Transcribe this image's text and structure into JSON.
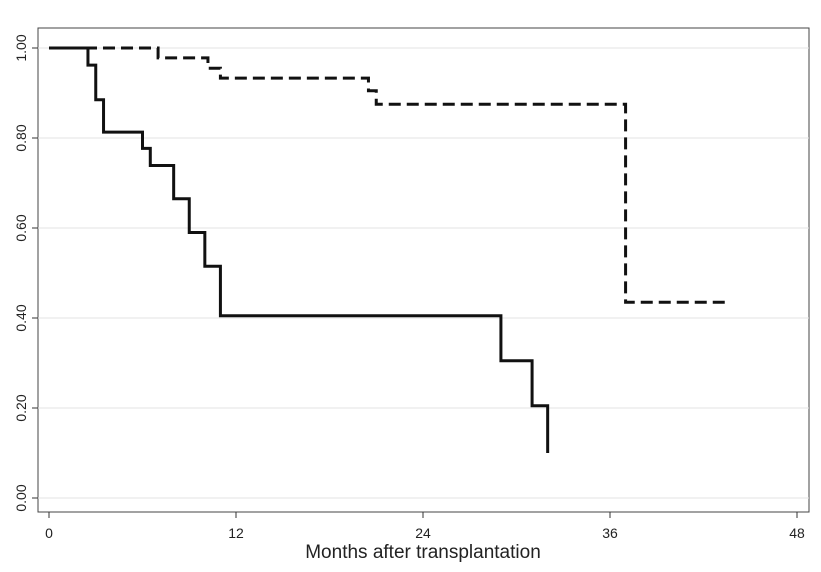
{
  "chart_data": {
    "type": "line",
    "title": "",
    "xlabel": "Months after transplantation",
    "ylabel": "",
    "xlim": [
      0,
      48
    ],
    "ylim": [
      0,
      1
    ],
    "x_ticks": [
      0,
      12,
      24,
      36,
      48
    ],
    "x_tick_labels": [
      "0",
      "12",
      "24",
      "36",
      "48"
    ],
    "y_ticks": [
      0,
      0.2,
      0.4,
      0.6,
      0.8,
      1.0
    ],
    "y_tick_labels": [
      "0.00",
      "0.20",
      "0.40",
      "0.60",
      "0.80",
      "1.00"
    ],
    "grid": true,
    "legend": "none",
    "step": true,
    "series": [
      {
        "style": "dashed",
        "color": "#111111",
        "x": [
          0,
          7,
          10.2,
          11,
          20.5,
          21,
          37,
          43.5
        ],
        "y": [
          1.0,
          0.978,
          0.955,
          0.933,
          0.905,
          0.875,
          0.435,
          0.435
        ]
      },
      {
        "style": "solid",
        "color": "#111111",
        "x": [
          0,
          2.5,
          3,
          3.5,
          6,
          6.5,
          8,
          9,
          10,
          11,
          29,
          31,
          32
        ],
        "y": [
          1.0,
          0.962,
          0.885,
          0.813,
          0.777,
          0.739,
          0.665,
          0.59,
          0.515,
          0.405,
          0.305,
          0.205,
          0.1
        ]
      }
    ]
  }
}
